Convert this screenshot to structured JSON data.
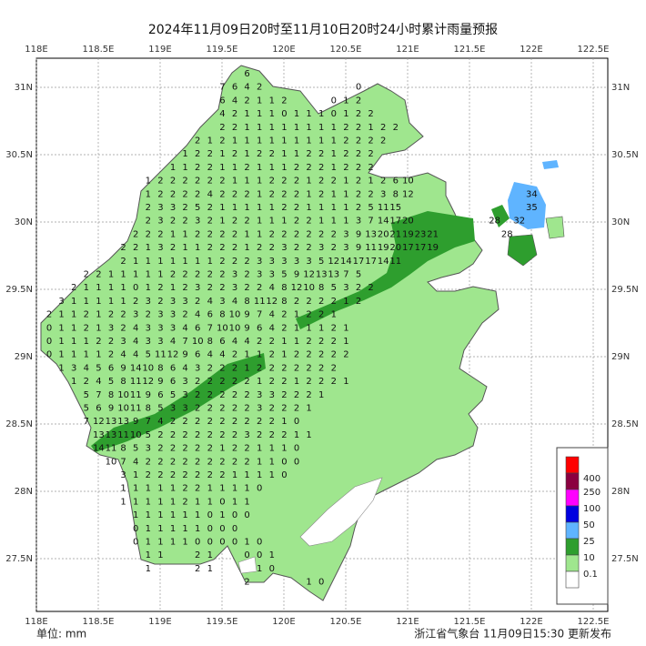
{
  "header": {
    "title": "2024年11月09日20时至11月10日20时24小时累计雨量预报"
  },
  "axes": {
    "lon_labels": [
      "118E",
      "118.5E",
      "119E",
      "119.5E",
      "120E",
      "120.5E",
      "121E",
      "121.5E",
      "122E",
      "122.5E"
    ],
    "lat_labels": [
      "31N",
      "30.5N",
      "30N",
      "29.5N",
      "29N",
      "28.5N",
      "28N",
      "27.5N"
    ]
  },
  "grid": {
    "rows": [
      [
        null,
        null,
        null,
        null,
        null,
        null,
        null,
        null,
        null,
        null,
        null,
        null,
        null,
        null,
        null,
        null,
        6
      ],
      [
        null,
        null,
        null,
        null,
        null,
        null,
        null,
        null,
        null,
        null,
        null,
        null,
        null,
        null,
        7,
        6,
        4,
        2,
        null,
        null,
        null,
        null,
        null,
        null,
        null,
        0
      ],
      [
        null,
        null,
        null,
        null,
        null,
        null,
        null,
        null,
        null,
        null,
        null,
        null,
        null,
        null,
        6,
        4,
        2,
        1,
        1,
        2,
        null,
        null,
        null,
        0,
        1,
        2
      ],
      [
        null,
        null,
        null,
        null,
        null,
        null,
        null,
        null,
        null,
        null,
        null,
        null,
        null,
        null,
        4,
        2,
        1,
        1,
        1,
        0,
        1,
        1,
        1,
        0,
        1,
        2,
        2
      ],
      [
        null,
        null,
        null,
        null,
        null,
        null,
        null,
        null,
        null,
        null,
        null,
        null,
        null,
        null,
        2,
        2,
        1,
        1,
        1,
        1,
        1,
        1,
        1,
        1,
        2,
        2,
        1,
        2,
        2
      ],
      [
        null,
        null,
        null,
        null,
        null,
        null,
        null,
        null,
        null,
        null,
        null,
        null,
        2,
        1,
        2,
        1,
        1,
        1,
        1,
        1,
        1,
        1,
        1,
        1,
        2,
        2,
        2,
        2
      ],
      [
        null,
        null,
        null,
        null,
        null,
        null,
        null,
        null,
        null,
        null,
        null,
        1,
        2,
        2,
        1,
        2,
        1,
        2,
        2,
        1,
        1,
        2,
        2,
        1,
        2,
        2,
        2
      ],
      [
        null,
        null,
        null,
        null,
        null,
        null,
        null,
        null,
        null,
        null,
        1,
        1,
        2,
        2,
        1,
        1,
        2,
        1,
        1,
        1,
        2,
        2,
        2,
        1,
        2,
        2,
        2
      ],
      [
        null,
        null,
        null,
        null,
        null,
        null,
        null,
        null,
        1,
        2,
        2,
        2,
        2,
        2,
        2,
        1,
        1,
        1,
        2,
        2,
        2,
        1,
        2,
        2,
        1,
        2,
        1,
        2,
        6,
        10
      ],
      [
        null,
        null,
        null,
        null,
        null,
        null,
        null,
        null,
        1,
        2,
        2,
        2,
        2,
        4,
        2,
        2,
        2,
        1,
        2,
        2,
        2,
        1,
        2,
        1,
        1,
        2,
        2,
        3,
        8,
        12,
        null,
        null,
        null,
        null,
        null,
        null,
        null,
        null,
        null,
        34
      ],
      [
        null,
        null,
        null,
        null,
        null,
        null,
        null,
        null,
        2,
        3,
        3,
        2,
        5,
        2,
        1,
        1,
        1,
        1,
        1,
        2,
        2,
        1,
        1,
        1,
        1,
        2,
        5,
        11,
        15,
        null,
        null,
        null,
        null,
        null,
        null,
        null,
        null,
        null,
        null,
        35
      ],
      [
        null,
        null,
        null,
        null,
        null,
        null,
        null,
        null,
        2,
        3,
        2,
        2,
        3,
        2,
        1,
        2,
        2,
        1,
        1,
        1,
        2,
        2,
        1,
        1,
        1,
        3,
        7,
        14,
        17,
        20,
        null,
        null,
        null,
        null,
        null,
        null,
        28,
        null,
        32
      ],
      [
        null,
        null,
        null,
        null,
        null,
        null,
        null,
        2,
        2,
        2,
        1,
        1,
        2,
        2,
        2,
        2,
        1,
        1,
        2,
        2,
        2,
        2,
        2,
        2,
        3,
        9,
        13,
        20,
        21,
        19,
        23,
        21,
        null,
        null,
        null,
        null,
        null,
        28
      ],
      [
        null,
        null,
        null,
        null,
        null,
        null,
        2,
        2,
        1,
        3,
        2,
        1,
        1,
        2,
        2,
        2,
        1,
        2,
        2,
        3,
        2,
        2,
        3,
        2,
        3,
        9,
        11,
        19,
        20,
        17,
        17,
        19
      ],
      [
        null,
        null,
        null,
        null,
        null,
        null,
        2,
        1,
        1,
        1,
        1,
        1,
        1,
        1,
        2,
        2,
        2,
        3,
        3,
        3,
        3,
        3,
        5,
        12,
        14,
        17,
        17,
        14,
        11
      ],
      [
        null,
        null,
        null,
        2,
        2,
        1,
        1,
        1,
        1,
        1,
        2,
        2,
        2,
        2,
        2,
        3,
        2,
        3,
        3,
        5,
        9,
        12,
        13,
        13,
        7,
        5
      ],
      [
        null,
        null,
        2,
        1,
        1,
        1,
        1,
        0,
        1,
        2,
        1,
        2,
        3,
        2,
        2,
        3,
        2,
        2,
        4,
        8,
        12,
        10,
        8,
        5,
        3,
        2,
        2
      ],
      [
        null,
        3,
        1,
        1,
        1,
        1,
        1,
        2,
        3,
        2,
        3,
        3,
        2,
        4,
        3,
        4,
        8,
        11,
        12,
        8,
        2,
        2,
        2,
        2,
        1,
        2
      ],
      [
        2,
        1,
        1,
        2,
        1,
        2,
        2,
        3,
        2,
        3,
        3,
        2,
        4,
        6,
        8,
        10,
        9,
        7,
        4,
        2,
        1,
        2,
        2,
        1
      ],
      [
        0,
        1,
        1,
        2,
        1,
        3,
        2,
        4,
        3,
        3,
        3,
        4,
        6,
        7,
        10,
        10,
        9,
        6,
        4,
        2,
        1,
        1,
        1,
        2,
        1
      ],
      [
        0,
        1,
        1,
        1,
        2,
        2,
        3,
        4,
        3,
        3,
        4,
        7,
        10,
        8,
        6,
        4,
        4,
        2,
        2,
        1,
        1,
        2,
        2,
        2,
        1
      ],
      [
        0,
        1,
        1,
        1,
        1,
        2,
        4,
        4,
        5,
        11,
        12,
        9,
        6,
        4,
        4,
        2,
        1,
        1,
        2,
        1,
        2,
        2,
        2,
        2,
        2
      ],
      [
        null,
        1,
        3,
        4,
        5,
        6,
        9,
        14,
        10,
        8,
        6,
        4,
        3,
        2,
        2,
        2,
        1,
        2,
        2,
        2,
        2,
        2,
        2,
        2
      ],
      [
        null,
        null,
        1,
        2,
        4,
        5,
        8,
        11,
        12,
        9,
        6,
        3,
        2,
        2,
        2,
        2,
        2,
        1,
        2,
        2,
        1,
        2,
        2,
        2,
        1
      ],
      [
        null,
        null,
        null,
        5,
        7,
        8,
        10,
        11,
        9,
        6,
        5,
        3,
        2,
        2,
        2,
        2,
        2,
        3,
        3,
        2,
        2,
        2,
        1
      ],
      [
        null,
        null,
        null,
        5,
        6,
        9,
        10,
        11,
        8,
        5,
        3,
        3,
        2,
        2,
        2,
        2,
        2,
        3,
        2,
        2,
        2,
        1
      ],
      [
        null,
        null,
        null,
        7,
        12,
        13,
        13,
        9,
        7,
        4,
        2,
        2,
        2,
        2,
        2,
        2,
        2,
        2,
        2,
        1,
        0
      ],
      [
        null,
        null,
        null,
        null,
        13,
        13,
        11,
        10,
        5,
        2,
        2,
        2,
        2,
        2,
        2,
        2,
        3,
        2,
        2,
        2,
        1,
        1
      ],
      [
        null,
        null,
        null,
        null,
        14,
        11,
        8,
        5,
        3,
        2,
        2,
        2,
        2,
        2,
        1,
        2,
        2,
        1,
        1,
        1,
        0
      ],
      [
        null,
        null,
        null,
        null,
        null,
        10,
        7,
        4,
        2,
        2,
        2,
        2,
        2,
        2,
        2,
        2,
        2,
        1,
        1,
        0,
        0
      ],
      [
        null,
        null,
        null,
        null,
        null,
        null,
        3,
        1,
        2,
        2,
        2,
        2,
        2,
        2,
        2,
        1,
        1,
        1,
        1,
        0
      ],
      [
        null,
        null,
        null,
        null,
        null,
        null,
        1,
        1,
        1,
        1,
        1,
        2,
        2,
        1,
        1,
        1,
        1,
        0
      ],
      [
        null,
        null,
        null,
        null,
        null,
        null,
        1,
        1,
        1,
        1,
        1,
        2,
        1,
        1,
        0,
        1,
        1
      ],
      [
        null,
        null,
        null,
        null,
        null,
        null,
        null,
        1,
        1,
        1,
        1,
        1,
        1,
        0,
        1,
        0,
        0
      ],
      [
        null,
        null,
        null,
        null,
        null,
        null,
        null,
        0,
        1,
        1,
        1,
        1,
        1,
        0,
        0,
        0
      ],
      [
        null,
        null,
        null,
        null,
        null,
        null,
        null,
        0,
        1,
        1,
        1,
        1,
        0,
        0,
        0,
        0,
        1,
        0
      ],
      [
        null,
        null,
        null,
        null,
        null,
        null,
        null,
        null,
        1,
        1,
        null,
        null,
        2,
        1,
        null,
        null,
        0,
        0,
        1
      ],
      [
        null,
        null,
        null,
        null,
        null,
        null,
        null,
        null,
        1,
        null,
        null,
        null,
        2,
        1,
        null,
        null,
        null,
        1,
        0
      ],
      [
        null,
        null,
        null,
        null,
        null,
        null,
        null,
        null,
        null,
        null,
        null,
        null,
        null,
        null,
        null,
        null,
        2,
        null,
        null,
        null,
        null,
        1,
        0
      ]
    ]
  },
  "legend": {
    "colors": [
      "#ff0000",
      "#8b0040",
      "#ff00ff",
      "#0000e0",
      "#5fb4ff",
      "#2e9e2e",
      "#9fe68e",
      "#ffffff"
    ],
    "labels": [
      "400",
      "250",
      "100",
      "50",
      "25",
      "10",
      "0.1"
    ]
  },
  "footer": {
    "unit": "单位: mm",
    "issuer": "浙江省气象台 11月09日15:30 更新发布"
  }
}
